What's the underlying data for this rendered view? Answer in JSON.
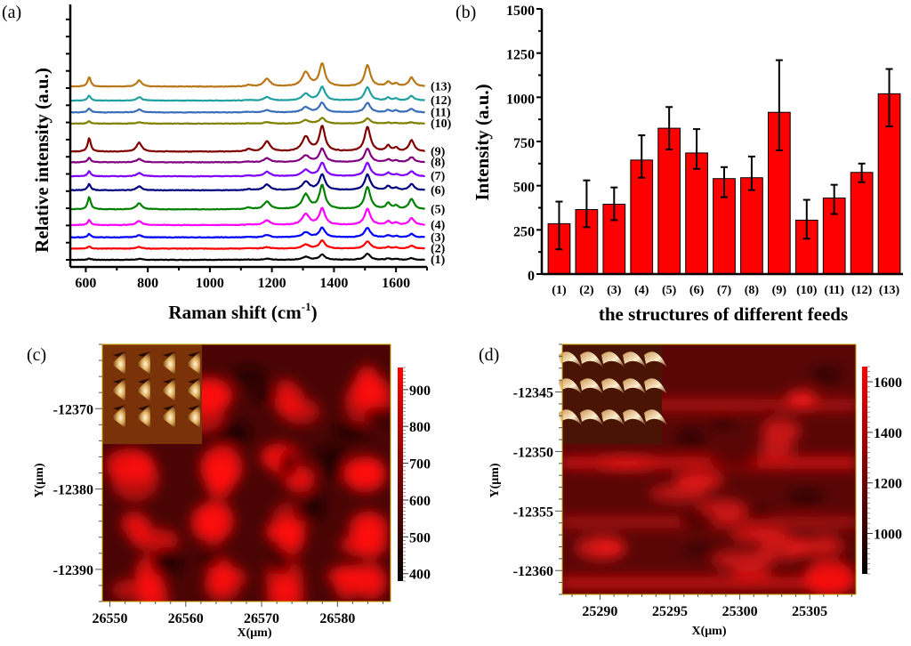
{
  "chart_data": [
    {
      "panel": "(a)",
      "type": "line",
      "title": "",
      "xlabel": "Raman shift (cm-1)",
      "xlabel_main": "Raman shift (cm",
      "xlabel_sup": "-1",
      "xlabel_end": ")",
      "ylabel": "Relative intensity (a.u.)",
      "xlim": [
        550,
        1700
      ],
      "xticks": [
        600,
        800,
        1000,
        1200,
        1400,
        1600
      ],
      "yticks_labeled": false,
      "peak_positions": [
        611,
        772,
        1125,
        1184,
        1309,
        1362,
        1508,
        1575,
        1600,
        1650
      ],
      "peak_widths": [
        6,
        10,
        10,
        12,
        14,
        11,
        11,
        8,
        8,
        10
      ],
      "series": [
        {
          "name": "(1)",
          "color": "#000000",
          "offset": 0,
          "peaks": [
            0.12,
            0.08,
            0.02,
            0.1,
            0.25,
            0.45,
            0.55,
            0.1,
            0.08,
            0.15
          ]
        },
        {
          "name": "(2)",
          "color": "#ff0000",
          "offset": 1,
          "peaks": [
            0.2,
            0.15,
            0.03,
            0.12,
            0.35,
            0.7,
            0.65,
            0.14,
            0.1,
            0.25
          ]
        },
        {
          "name": "(3)",
          "color": "#0000ff",
          "offset": 2,
          "peaks": [
            0.3,
            0.2,
            0.04,
            0.22,
            0.45,
            0.85,
            0.85,
            0.18,
            0.12,
            0.3
          ]
        },
        {
          "name": "(4)",
          "color": "#ff00ff",
          "offset": 3.1,
          "peaks": [
            0.45,
            0.38,
            0.05,
            0.42,
            0.95,
            1.45,
            1.45,
            0.3,
            0.2,
            0.6
          ]
        },
        {
          "name": "(5)",
          "color": "#008000",
          "offset": 4.5,
          "peaks": [
            1.1,
            0.55,
            0.15,
            0.7,
            1.3,
            2.1,
            2.0,
            0.55,
            0.3,
            0.9
          ]
        },
        {
          "name": "(6)",
          "color": "#000080",
          "offset": 6.2,
          "peaks": [
            0.55,
            0.35,
            0.1,
            0.5,
            0.75,
            1.4,
            1.4,
            0.35,
            0.2,
            0.55
          ]
        },
        {
          "name": "(7)",
          "color": "#8000ff",
          "offset": 7.45,
          "peaks": [
            0.45,
            0.3,
            0.06,
            0.4,
            0.55,
            1.2,
            1.2,
            0.28,
            0.15,
            0.45
          ]
        },
        {
          "name": "(8)",
          "color": "#800080",
          "offset": 8.7,
          "peaks": [
            0.4,
            0.3,
            0.06,
            0.35,
            0.6,
            1.2,
            1.2,
            0.25,
            0.15,
            0.45
          ]
        },
        {
          "name": "(9)",
          "color": "#800000",
          "offset": 9.65,
          "peaks": [
            1.2,
            0.8,
            0.2,
            0.9,
            1.3,
            2.2,
            2.2,
            0.5,
            0.3,
            1.0
          ]
        },
        {
          "name": "(10)",
          "color": "#808000",
          "offset": 12.15,
          "peaks": [
            0.2,
            0.12,
            0.03,
            0.12,
            0.3,
            0.5,
            0.45,
            0.08,
            0.06,
            0.12
          ]
        },
        {
          "name": "(11)",
          "color": "#3a6fb7",
          "offset": 13.15,
          "peaks": [
            0.35,
            0.25,
            0.05,
            0.2,
            0.45,
            0.85,
            0.85,
            0.2,
            0.15,
            0.3
          ]
        },
        {
          "name": "(12)",
          "color": "#20a0a0",
          "offset": 14.2,
          "peaks": [
            0.45,
            0.3,
            0.06,
            0.3,
            0.6,
            1.2,
            1.2,
            0.25,
            0.15,
            0.4
          ]
        },
        {
          "name": "(13)",
          "color": "#b87818",
          "offset": 15.45,
          "peaks": [
            0.85,
            0.55,
            0.12,
            0.7,
            1.25,
            2.0,
            1.9,
            0.4,
            0.25,
            0.8
          ]
        }
      ]
    },
    {
      "panel": "(b)",
      "type": "bar",
      "title": "",
      "xlabel": "the structures of different feeds",
      "ylabel": "Intensity (a.u.)",
      "ylim": [
        0,
        1500
      ],
      "yticks": [
        0,
        250,
        500,
        750,
        1000,
        1250,
        1500
      ],
      "bar_color": "#ff0000",
      "categories": [
        "(1)",
        "(2)",
        "(3)",
        "(4)",
        "(5)",
        "(6)",
        "(7)",
        "(8)",
        "(9)",
        "(10)",
        "(11)",
        "(12)",
        "(13)"
      ],
      "values": [
        285,
        365,
        395,
        645,
        825,
        685,
        540,
        545,
        915,
        305,
        430,
        575,
        1020
      ],
      "error_low": [
        140,
        265,
        305,
        545,
        705,
        595,
        435,
        475,
        700,
        200,
        340,
        520,
        835
      ],
      "error_high": [
        410,
        530,
        490,
        785,
        945,
        820,
        605,
        665,
        1210,
        420,
        505,
        625,
        1160
      ]
    },
    {
      "panel": "(c)",
      "type": "heatmap",
      "xlabel": "X(μm)",
      "ylabel": "Y(μm)",
      "xticks": [
        26550,
        26560,
        26570,
        26580
      ],
      "yticks": [
        -12370,
        -12380,
        -12390
      ],
      "xlim": [
        26549,
        26587
      ],
      "ylim": [
        -12394,
        -12362
      ],
      "colorbar_ticks": [
        400,
        500,
        600,
        700,
        800,
        900
      ],
      "colorbar_range": [
        380,
        960
      ],
      "colormap": [
        "#000000",
        "#ff0000"
      ],
      "inset": "AFM image of triangular nanostructure array (3 rows x 4 columns)"
    },
    {
      "panel": "(d)",
      "type": "heatmap",
      "xlabel": "X(μm)",
      "ylabel": "Y(μm)",
      "xticks": [
        25290,
        25295,
        25300,
        25305
      ],
      "yticks": [
        -12345,
        -12350,
        -12355,
        -12360
      ],
      "xlim": [
        25287.3,
        25308.3
      ],
      "ylim": [
        -12362,
        -12341
      ],
      "colorbar_ticks": [
        1000,
        1200,
        1400,
        1600
      ],
      "colorbar_range": [
        840,
        1660
      ],
      "colormap": [
        "#000000",
        "#ff0000"
      ],
      "inset": "AFM image of tilted crescent nanostructure rows"
    }
  ]
}
